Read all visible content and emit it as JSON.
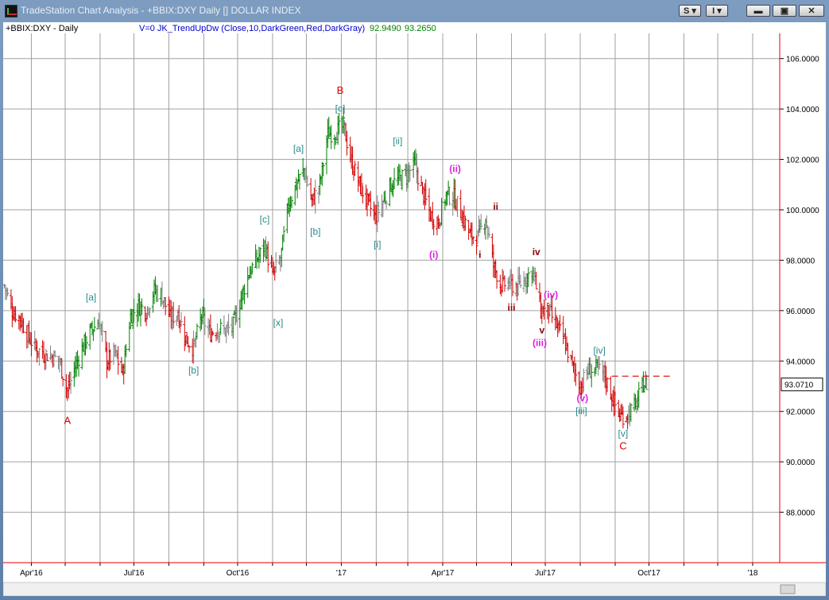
{
  "window": {
    "title": "TradeStation Chart Analysis - +BBIX:DXY Daily [] DOLLAR INDEX",
    "buttons": {
      "symbol_btn": "S",
      "indicator_btn": "I",
      "minimize": "▬",
      "restore": "▣",
      "close": "✕"
    }
  },
  "header": {
    "symbol": "+BBIX:DXY - Daily",
    "indicator": "V=0  JK_TrendUpDw  (Close,10,DarkGreen,Red,DarkGray)",
    "value1": "92.9490",
    "value2": "93.2650"
  },
  "colors": {
    "up": "#008000",
    "down": "#d00000",
    "neutral": "#808080",
    "label_teal": "#2a8a8a",
    "label_magenta": "#e020e0",
    "label_red": "#e00000",
    "label_maroon": "#8b0000",
    "grid": "#a0a0a0"
  },
  "last_price": "93.0710",
  "chart_data": {
    "type": "ohlc",
    "ylim": [
      86,
      107
    ],
    "y_ticks": [
      88,
      90,
      92,
      94,
      96,
      98,
      100,
      102,
      104,
      106
    ],
    "y_tick_labels": [
      "88.0000",
      "90.0000",
      "92.0000",
      "94.0000",
      "96.0000",
      "98.0000",
      "100.0000",
      "102.0000",
      "104.0000",
      "106.0000"
    ],
    "x_ticks": [
      {
        "date": "2016-04-01",
        "label": "Apr'16"
      },
      {
        "date": "2016-07-01",
        "label": "Jul'16"
      },
      {
        "date": "2016-10-01",
        "label": "Oct'16"
      },
      {
        "date": "2017-01-01",
        "label": "'17"
      },
      {
        "date": "2017-04-01",
        "label": "Apr'17"
      },
      {
        "date": "2017-07-01",
        "label": "Jul'17"
      },
      {
        "date": "2017-10-01",
        "label": "Oct'17"
      },
      {
        "date": "2018-01-01",
        "label": "'18"
      }
    ],
    "x_start": "2016-03-07",
    "x_end": "2018-01-25",
    "close_path": [
      [
        "2016-03-08",
        97.0
      ],
      [
        "2016-03-15",
        96.0
      ],
      [
        "2016-03-22",
        95.7
      ],
      [
        "2016-03-29",
        95.0
      ],
      [
        "2016-04-05",
        94.5
      ],
      [
        "2016-04-12",
        94.3
      ],
      [
        "2016-04-19",
        94.2
      ],
      [
        "2016-04-26",
        94.0
      ],
      [
        "2016-05-03",
        92.8
      ],
      [
        "2016-05-10",
        93.8
      ],
      [
        "2016-05-17",
        94.6
      ],
      [
        "2016-05-24",
        95.2
      ],
      [
        "2016-05-31",
        95.6
      ],
      [
        "2016-06-07",
        94.0
      ],
      [
        "2016-06-14",
        94.3
      ],
      [
        "2016-06-21",
        93.5
      ],
      [
        "2016-06-28",
        95.8
      ],
      [
        "2016-07-05",
        96.2
      ],
      [
        "2016-07-12",
        96.0
      ],
      [
        "2016-07-19",
        96.8
      ],
      [
        "2016-07-26",
        96.6
      ],
      [
        "2016-08-02",
        95.7
      ],
      [
        "2016-08-09",
        95.9
      ],
      [
        "2016-08-16",
        94.9
      ],
      [
        "2016-08-23",
        94.5
      ],
      [
        "2016-08-30",
        95.8
      ],
      [
        "2016-09-06",
        95.1
      ],
      [
        "2016-09-13",
        95.3
      ],
      [
        "2016-09-20",
        95.2
      ],
      [
        "2016-09-27",
        95.4
      ],
      [
        "2016-10-04",
        96.5
      ],
      [
        "2016-10-11",
        97.5
      ],
      [
        "2016-10-18",
        98.0
      ],
      [
        "2016-10-25",
        98.6
      ],
      [
        "2016-11-01",
        97.4
      ],
      [
        "2016-11-08",
        98.0
      ],
      [
        "2016-11-15",
        100.2
      ],
      [
        "2016-11-22",
        101.0
      ],
      [
        "2016-11-29",
        101.6
      ],
      [
        "2016-12-06",
        100.3
      ],
      [
        "2016-12-13",
        101.0
      ],
      [
        "2016-12-20",
        103.0
      ],
      [
        "2016-12-27",
        103.1
      ],
      [
        "2017-01-03",
        103.3
      ],
      [
        "2017-01-10",
        101.9
      ],
      [
        "2017-01-17",
        101.0
      ],
      [
        "2017-01-24",
        100.3
      ],
      [
        "2017-01-31",
        99.7
      ],
      [
        "2017-02-07",
        100.3
      ],
      [
        "2017-02-14",
        101.0
      ],
      [
        "2017-02-21",
        101.2
      ],
      [
        "2017-02-28",
        101.4
      ],
      [
        "2017-03-07",
        101.8
      ],
      [
        "2017-03-14",
        100.7
      ],
      [
        "2017-03-21",
        99.8
      ],
      [
        "2017-03-28",
        99.5
      ],
      [
        "2017-04-04",
        100.6
      ],
      [
        "2017-04-11",
        100.5
      ],
      [
        "2017-04-18",
        99.8
      ],
      [
        "2017-04-25",
        99.0
      ],
      [
        "2017-05-02",
        98.9
      ],
      [
        "2017-05-09",
        99.7
      ],
      [
        "2017-05-16",
        97.8
      ],
      [
        "2017-05-23",
        97.0
      ],
      [
        "2017-05-30",
        97.1
      ],
      [
        "2017-06-06",
        96.9
      ],
      [
        "2017-06-13",
        97.3
      ],
      [
        "2017-06-20",
        97.6
      ],
      [
        "2017-06-27",
        96.0
      ],
      [
        "2017-07-04",
        96.0
      ],
      [
        "2017-07-11",
        95.4
      ],
      [
        "2017-07-18",
        94.8
      ],
      [
        "2017-07-25",
        93.8
      ],
      [
        "2017-08-01",
        93.0
      ],
      [
        "2017-08-08",
        93.6
      ],
      [
        "2017-08-15",
        93.7
      ],
      [
        "2017-08-22",
        93.5
      ],
      [
        "2017-08-29",
        92.6
      ],
      [
        "2017-09-05",
        91.8
      ],
      [
        "2017-09-12",
        91.9
      ],
      [
        "2017-09-19",
        92.2
      ],
      [
        "2017-09-26",
        93.1
      ],
      [
        "2017-09-29",
        93.07
      ]
    ],
    "annotations": [
      {
        "text": "A",
        "date": "2016-05-03",
        "y": 91.5,
        "color": "red"
      },
      {
        "text": "[a]",
        "date": "2016-05-24",
        "y": 96.4,
        "color": "teal"
      },
      {
        "text": "[b]",
        "date": "2016-08-23",
        "y": 93.5,
        "color": "teal"
      },
      {
        "text": "[c]",
        "date": "2016-10-25",
        "y": 99.5,
        "color": "teal"
      },
      {
        "text": "[x]",
        "date": "2016-11-06",
        "y": 95.4,
        "color": "teal"
      },
      {
        "text": "[a]",
        "date": "2016-11-24",
        "y": 102.3,
        "color": "teal"
      },
      {
        "text": "[b]",
        "date": "2016-12-09",
        "y": 99.0,
        "color": "teal"
      },
      {
        "text": "B",
        "date": "2016-12-31",
        "y": 104.6,
        "color": "red"
      },
      {
        "text": "[c]",
        "date": "2016-12-31",
        "y": 103.9,
        "color": "teal"
      },
      {
        "text": "[i]",
        "date": "2017-02-02",
        "y": 98.5,
        "color": "teal"
      },
      {
        "text": "[ii]",
        "date": "2017-02-20",
        "y": 102.6,
        "color": "teal"
      },
      {
        "text": "(i)",
        "date": "2017-03-24",
        "y": 98.1,
        "color": "magenta"
      },
      {
        "text": "(ii)",
        "date": "2017-04-12",
        "y": 101.5,
        "color": "magenta"
      },
      {
        "text": "i",
        "date": "2017-05-04",
        "y": 98.1,
        "color": "maroon"
      },
      {
        "text": "ii",
        "date": "2017-05-18",
        "y": 100.0,
        "color": "maroon"
      },
      {
        "text": "iii",
        "date": "2017-06-01",
        "y": 96.0,
        "color": "maroon"
      },
      {
        "text": "iv",
        "date": "2017-06-23",
        "y": 98.2,
        "color": "maroon"
      },
      {
        "text": "(iv)",
        "date": "2017-07-06",
        "y": 96.5,
        "color": "magenta"
      },
      {
        "text": "v",
        "date": "2017-06-28",
        "y": 95.1,
        "color": "maroon"
      },
      {
        "text": "(iii)",
        "date": "2017-06-26",
        "y": 94.6,
        "color": "magenta"
      },
      {
        "text": "[iv]",
        "date": "2017-08-18",
        "y": 94.3,
        "color": "teal"
      },
      {
        "text": "(v)",
        "date": "2017-08-03",
        "y": 92.4,
        "color": "magenta"
      },
      {
        "text": "[iii]",
        "date": "2017-08-02",
        "y": 91.9,
        "color": "teal"
      },
      {
        "text": "[v]",
        "date": "2017-09-08",
        "y": 91.0,
        "color": "teal"
      },
      {
        "text": "C",
        "date": "2017-09-08",
        "y": 90.5,
        "color": "red"
      }
    ],
    "resistance_line": {
      "from": "2017-08-29",
      "to": "2017-10-20",
      "y": 93.4,
      "color": "red",
      "style": "dashed"
    },
    "grid": true
  }
}
